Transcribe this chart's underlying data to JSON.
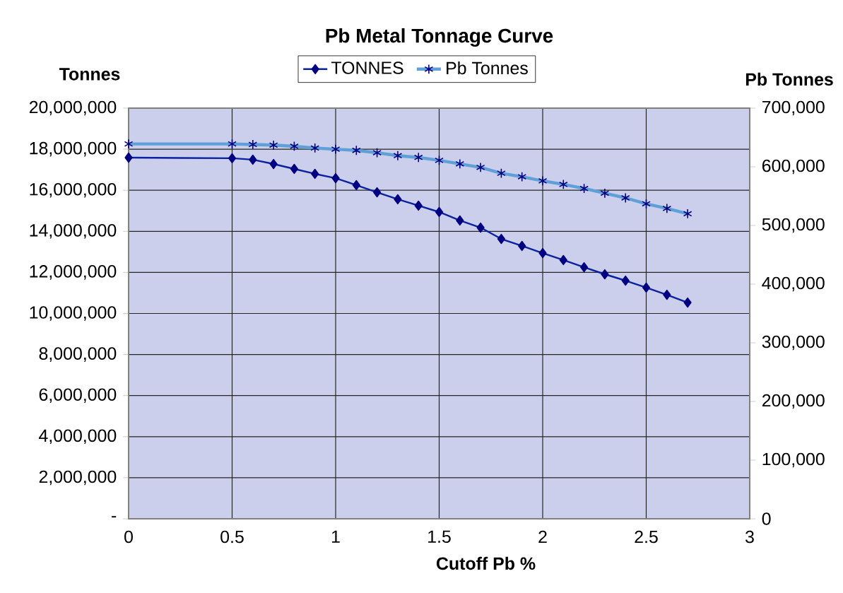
{
  "chart_data": {
    "type": "line",
    "title": "Pb Metal Tonnage Curve",
    "xlabel": "Cutoff Pb %",
    "ylabel": "Tonnes",
    "y2label": "Pb Tonnes",
    "x": [
      0,
      0.5,
      0.6,
      0.7,
      0.8,
      0.9,
      1.0,
      1.1,
      1.2,
      1.3,
      1.4,
      1.5,
      1.6,
      1.7,
      1.8,
      1.9,
      2.0,
      2.1,
      2.2,
      2.3,
      2.4,
      2.5,
      2.6,
      2.7
    ],
    "series": [
      {
        "name": "TONNES",
        "color": "#0a22a0",
        "marker": "diamond",
        "values": [
          17590000,
          17560000,
          17490000,
          17280000,
          17040000,
          16800000,
          16590000,
          16250000,
          15900000,
          15560000,
          15250000,
          14940000,
          14530000,
          14180000,
          13630000,
          13290000,
          12940000,
          12600000,
          12250000,
          11910000,
          11600000,
          11260000,
          10910000,
          10530000
        ]
      },
      {
        "name": "Pb Tonnes",
        "color": "#5fa0d8",
        "marker": "cross",
        "axis": "y2",
        "values": [
          639000,
          639000,
          638000,
          637000,
          635000,
          632000,
          630000,
          628000,
          624000,
          619000,
          616000,
          611000,
          605000,
          599000,
          589000,
          583000,
          576000,
          570000,
          563000,
          555000,
          547000,
          537000,
          529000,
          520000
        ]
      }
    ],
    "xlim": [
      0,
      3
    ],
    "xticks": [
      0,
      0.5,
      1,
      1.5,
      2,
      2.5,
      3
    ],
    "ylim": [
      0,
      20000000
    ],
    "yticks": [
      {
        "value": 0,
        "label": "-"
      },
      {
        "value": 2000000,
        "label": "2,000,000"
      },
      {
        "value": 4000000,
        "label": "4,000,000"
      },
      {
        "value": 6000000,
        "label": "6,000,000"
      },
      {
        "value": 8000000,
        "label": "8,000,000"
      },
      {
        "value": 10000000,
        "label": "10,000,000"
      },
      {
        "value": 12000000,
        "label": "12,000,000"
      },
      {
        "value": 14000000,
        "label": "14,000,000"
      },
      {
        "value": 16000000,
        "label": "16,000,000"
      },
      {
        "value": 18000000,
        "label": "18,000,000"
      },
      {
        "value": 20000000,
        "label": "20,000,000"
      }
    ],
    "y2lim": [
      0,
      700000
    ],
    "y2ticks": [
      0,
      {
        "value": 100000,
        "label": "100,000"
      },
      {
        "value": 200000,
        "label": "200,000"
      },
      {
        "value": 300000,
        "label": "300,000"
      },
      {
        "value": 400000,
        "label": "400,000"
      },
      {
        "value": 500000,
        "label": "500,000"
      },
      {
        "value": 600000,
        "label": "600,000"
      },
      {
        "value": 700000,
        "label": "700,000"
      }
    ],
    "grid": true,
    "legend": "top"
  }
}
